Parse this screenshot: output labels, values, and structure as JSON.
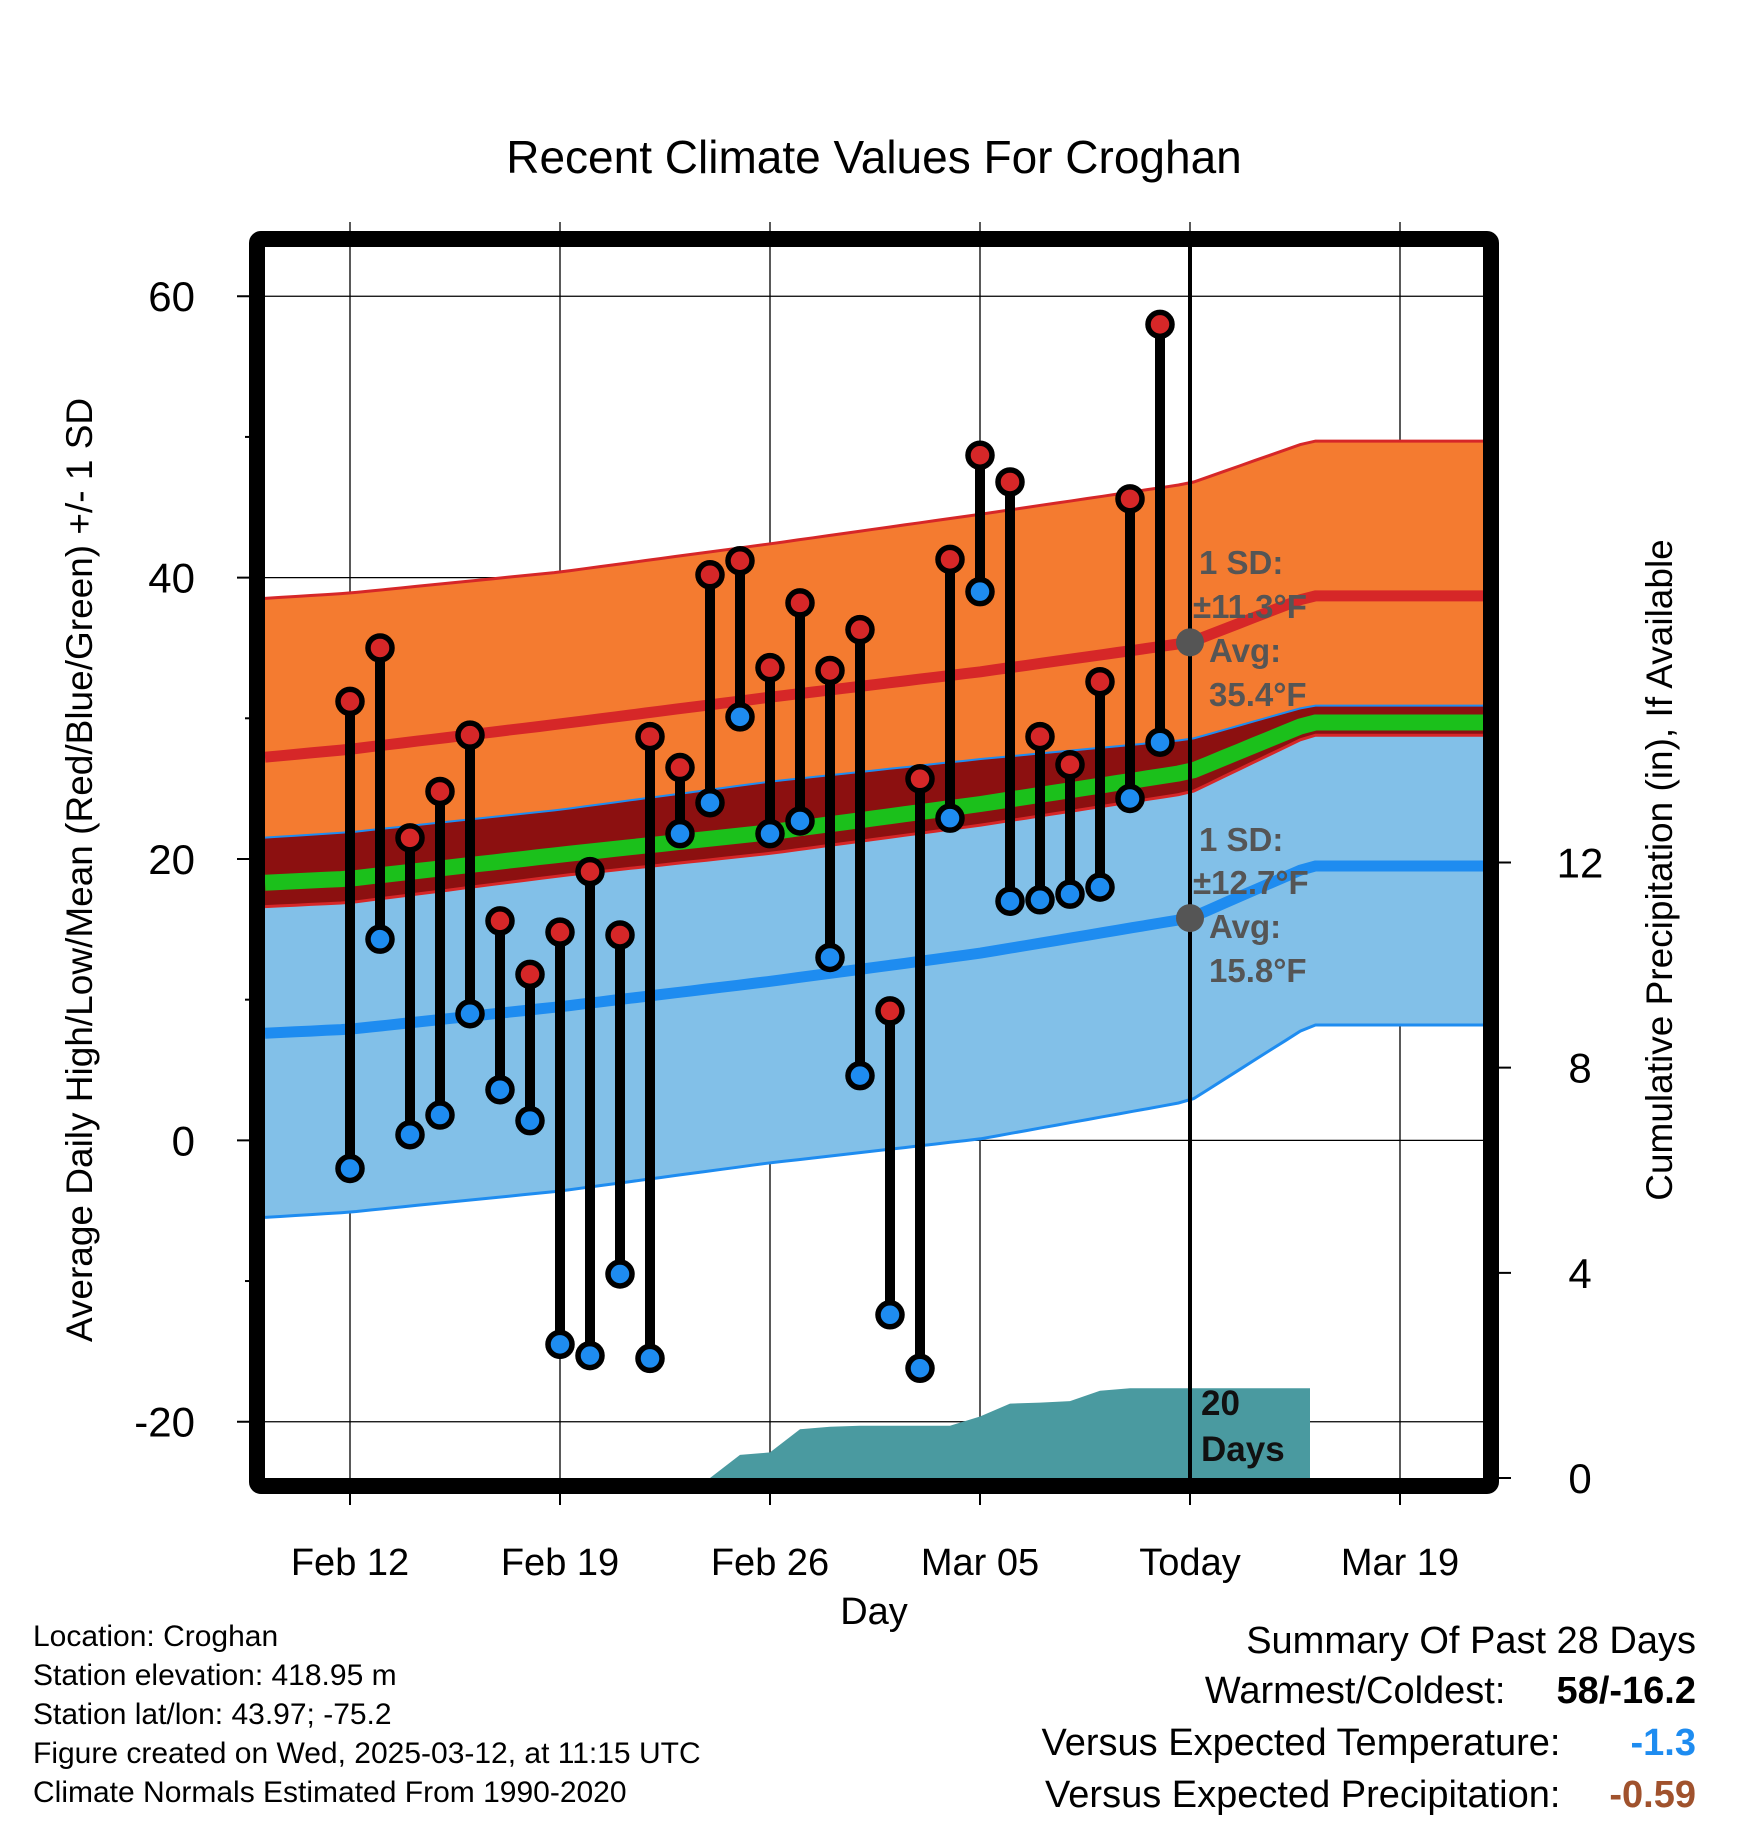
{
  "chart_data": {
    "type": "line",
    "title": "Recent Climate Values For Croghan",
    "xlabel": "Day",
    "ylabel": "Average Daily High/Low/Mean (Red/Blue/Green) +/- 1 SD",
    "y2label": "Cumulative Precipitation (in), If Available",
    "x_ticks": [
      "Feb 12",
      "Feb 19",
      "Feb 26",
      "Mar 05",
      "Today",
      "Mar 19"
    ],
    "x_start_label": "Feb 12",
    "ylim": [
      -24,
      63.5
    ],
    "yticks": [
      60,
      40,
      20,
      0,
      -20
    ],
    "y2lim": [
      0,
      24
    ],
    "y2ticks": [
      0,
      4,
      8,
      12
    ],
    "grid": true,
    "normal_high": {
      "color": "#d62728",
      "band_color": "#f47b30",
      "x": [
        -3,
        0,
        7,
        14,
        21,
        28,
        32
      ],
      "avg": [
        27.2,
        27.8,
        29.6,
        31.5,
        33.3,
        35.4,
        38.7
      ],
      "upper": [
        38.5,
        38.9,
        40.4,
        42.4,
        44.5,
        46.7,
        49.7
      ],
      "lower": [
        16.6,
        16.9,
        18.8,
        20.4,
        22.4,
        24.7,
        28.8
      ]
    },
    "normal_low": {
      "color": "#1e8cf0",
      "band_color": "#82c0e8",
      "x": [
        -3,
        0,
        7,
        14,
        21,
        28,
        32
      ],
      "avg": [
        7.6,
        7.9,
        9.5,
        11.3,
        13.3,
        15.8,
        19.5
      ],
      "upper": [
        21.5,
        21.9,
        23.5,
        25.5,
        27.1,
        28.5,
        30.9
      ],
      "lower": [
        -5.5,
        -5.1,
        -3.6,
        -1.6,
        0.1,
        2.8,
        8.2
      ]
    },
    "normal_mean": {
      "color": "#1bc01b",
      "x": [
        -3,
        0,
        7,
        14,
        21,
        28,
        32
      ],
      "avg": [
        18.3,
        18.6,
        20.3,
        21.9,
        23.9,
        26.2,
        29.7
      ]
    },
    "daily": {
      "x": [
        0,
        1,
        2,
        3,
        4,
        5,
        6,
        7,
        8,
        9,
        10,
        11,
        12,
        13,
        14,
        15,
        16,
        17,
        18,
        19,
        20,
        21,
        22,
        23,
        24,
        25,
        26,
        27
      ],
      "high": [
        31.2,
        35.0,
        21.5,
        24.8,
        28.8,
        15.6,
        11.8,
        14.8,
        19.1,
        14.6,
        28.7,
        26.5,
        40.2,
        41.2,
        33.6,
        38.2,
        33.4,
        36.3,
        9.2,
        25.7,
        41.3,
        48.7,
        46.8,
        28.7,
        26.7,
        32.6,
        45.6,
        58.0
      ],
      "low": [
        -2.0,
        14.3,
        0.4,
        1.8,
        9.0,
        3.6,
        1.4,
        -14.5,
        -15.3,
        -9.5,
        -15.5,
        21.8,
        24.0,
        30.1,
        21.8,
        22.7,
        13.0,
        4.6,
        -12.4,
        -16.2,
        22.9,
        39.0,
        17.0,
        17.1,
        17.5,
        18.0,
        24.3,
        28.3
      ]
    },
    "precip": {
      "color": "#4a9aa0",
      "x": [
        12,
        13,
        14,
        15,
        16,
        17,
        18,
        19,
        20,
        21,
        22,
        23,
        24,
        25,
        26,
        27,
        28,
        32
      ],
      "cumulative": [
        0,
        0.45,
        0.5,
        0.95,
        1.0,
        1.02,
        1.02,
        1.02,
        1.02,
        1.2,
        1.45,
        1.47,
        1.5,
        1.7,
        1.75,
        1.75,
        1.75,
        1.75
      ]
    },
    "today_offset": 28,
    "annotations": {
      "high_sd_line1": "1 SD:",
      "high_sd_line2": "±11.3°F",
      "high_avg_line1": "Avg:",
      "high_avg_line2": "35.4°F",
      "low_sd_line1": "1 SD:",
      "low_sd_line2": "±12.7°F",
      "low_avg_line1": "Avg:",
      "low_avg_line2": "15.8°F",
      "days_line1": "20",
      "days_line2": "Days",
      "high_marker_value": 35.4,
      "low_marker_value": 15.8
    },
    "colors": {
      "high_dot": "#d62728",
      "low_dot": "#1e8cf0",
      "dark_band": "#8c1010",
      "annotation": "#555555"
    }
  },
  "info": {
    "location": "Location: Croghan",
    "elevation": "Station elevation: 418.95 m",
    "latlon": "Station lat/lon: 43.97; -75.2",
    "created": "Figure created on Wed, 2025-03-12, at 11:15 UTC",
    "normals": "Climate Normals Estimated From 1990-2020"
  },
  "summary": {
    "heading": "Summary Of Past 28 Days",
    "warmest_label": "Warmest/Coldest:",
    "warmest_value": "58/-16.2",
    "temp_label": "Versus Expected Temperature:",
    "temp_value": "-1.3",
    "temp_color": "#1e8cf0",
    "precip_label": "Versus Expected Precipitation:",
    "precip_value": "-0.59",
    "precip_color": "#a0522d"
  }
}
